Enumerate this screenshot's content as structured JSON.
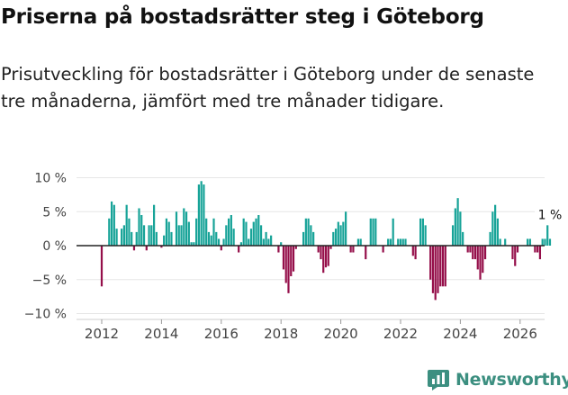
{
  "header": {
    "title": "Priserna på bostadsrätter steg i Göteborg",
    "subtitle": "Prisutveckling för bostadsrätter i Göteborg under de senaste tre månaderna, jämfört med tre månader tidigare."
  },
  "brand": {
    "name": "Newsworthy",
    "color": "#3c8f80"
  },
  "chart_data": {
    "type": "bar",
    "title": "Priserna på bostadsrätter steg i Göteborg",
    "xlabel": "",
    "ylabel": "",
    "ylim": [
      -10,
      10
    ],
    "y_ticks": [
      {
        "v": 10,
        "label": "10 %"
      },
      {
        "v": 5,
        "label": "5 %"
      },
      {
        "v": 0,
        "label": "0 %"
      },
      {
        "v": -5,
        "label": "−5 %"
      },
      {
        "v": -10,
        "label": "−10 %"
      }
    ],
    "x_ticks": [
      "2012",
      "2014",
      "2016",
      "2018",
      "2020",
      "2022",
      "2024",
      "2026"
    ],
    "x_start": 2012.0,
    "x_step": 0.08333,
    "colors": {
      "positive": "#17a398",
      "negative": "#950f4a"
    },
    "values": [
      -6,
      0,
      0,
      4,
      6.5,
      6,
      2.5,
      0,
      2.5,
      3,
      6,
      4,
      2,
      -0.7,
      2,
      5.5,
      4.5,
      3,
      -0.7,
      3,
      3,
      6,
      2,
      0,
      -0.3,
      1.5,
      4,
      3.5,
      2,
      0,
      5,
      3,
      3,
      5.5,
      5,
      3.5,
      0.5,
      0.5,
      4,
      9,
      9.5,
      9,
      4,
      2,
      1.5,
      4,
      2,
      1,
      -0.7,
      1,
      3,
      4,
      4.5,
      2.5,
      0,
      -1,
      0.5,
      4,
      3.5,
      1,
      2.5,
      3.5,
      4,
      4.5,
      3,
      1,
      2,
      1,
      1.5,
      0,
      0,
      -1,
      0.5,
      -3.5,
      -5.5,
      -7,
      -4.5,
      -3.8,
      -0.5,
      0,
      0,
      2,
      4,
      4,
      3,
      2,
      0,
      -1,
      -2,
      -4,
      -3.2,
      -3,
      -0.5,
      2,
      2.5,
      3.5,
      3,
      3.5,
      5,
      0,
      -1,
      -1,
      0,
      1,
      1,
      0,
      -2,
      0,
      4,
      4,
      4,
      0,
      0,
      -1,
      0,
      1,
      1,
      4,
      0,
      1,
      1,
      1,
      1,
      0,
      0,
      -1.5,
      -2,
      0,
      4,
      4,
      3,
      0,
      -5,
      -7,
      -8,
      -7,
      -6,
      -6,
      -6,
      0,
      0,
      3,
      5.5,
      7,
      5,
      2,
      0,
      -1,
      -1,
      -2,
      -2,
      -3.5,
      -5,
      -4,
      -2,
      0,
      2,
      5,
      6,
      4,
      1,
      0,
      1,
      0,
      0,
      -2,
      -3,
      -1,
      0,
      0,
      0,
      1,
      1,
      0,
      -1,
      -1,
      -2,
      1,
      1,
      3,
      1
    ],
    "annotation": {
      "text": "1 %",
      "value": 1
    }
  }
}
